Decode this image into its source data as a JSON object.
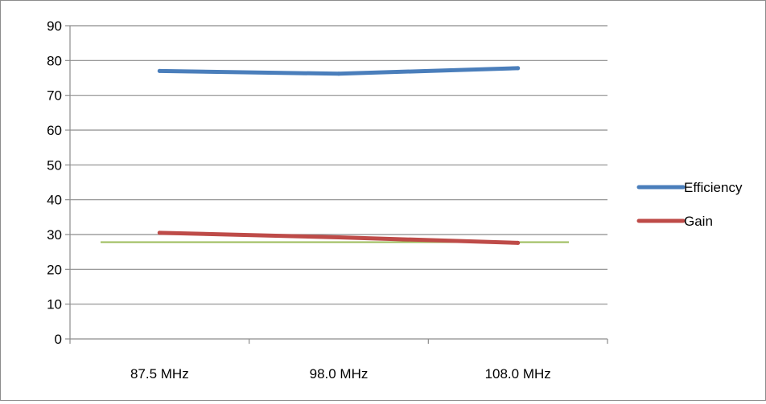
{
  "chart_data": {
    "type": "line",
    "categories": [
      "87.5 MHz",
      "98.0 MHz",
      "108.0 MHz"
    ],
    "y_ticks": [
      "0",
      "10",
      "20",
      "30",
      "40",
      "50",
      "60",
      "70",
      "80",
      "90"
    ],
    "ylim": [
      0,
      90
    ],
    "grid": true,
    "legend_position": "right",
    "series": [
      {
        "name": "Efficiency",
        "values": [
          77,
          76.2,
          77.8
        ],
        "color": "#4a7ebb"
      },
      {
        "name": "Gain",
        "values": [
          30.5,
          29.2,
          27.6
        ],
        "color": "#be4b48"
      }
    ],
    "reference_line": {
      "value": 27.8,
      "color": "#9bbb59"
    }
  }
}
